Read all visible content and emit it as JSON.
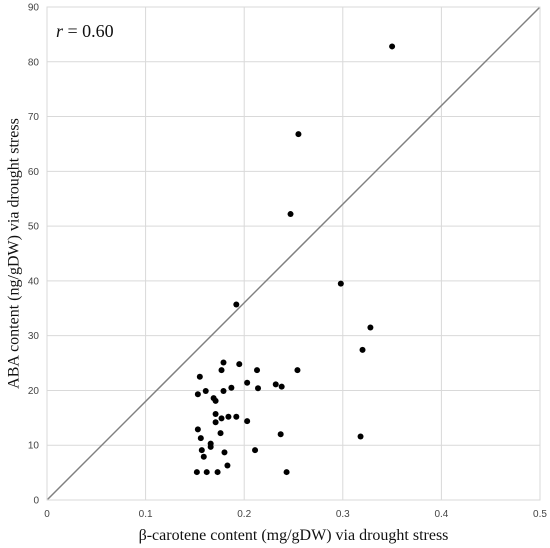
{
  "chart_data": {
    "type": "scatter",
    "title": "",
    "xlabel": "β-carotene content  (mg/gDW) via drought stress",
    "ylabel": "ABA content (ng/gDW) via drought stress",
    "xlim": [
      0,
      0.5
    ],
    "ylim": [
      0,
      90
    ],
    "xticks": [
      "0",
      "0.1",
      "0.2",
      "0.3",
      "0.4",
      "0.5"
    ],
    "yticks": [
      "0",
      "10",
      "20",
      "30",
      "40",
      "50",
      "60",
      "70",
      "80",
      "90"
    ],
    "grid": true,
    "annotation": {
      "r_label": "r",
      "r_value": " = 0.60"
    },
    "reference_line": {
      "from": [
        0,
        0
      ],
      "to": [
        0.5,
        90
      ]
    },
    "colors": {
      "points": "#000000",
      "line": "#808080",
      "grid": "#d9d9d9"
    },
    "points": [
      [
        0.35,
        82.8
      ],
      [
        0.255,
        66.8
      ],
      [
        0.247,
        52.2
      ],
      [
        0.298,
        39.5
      ],
      [
        0.192,
        35.7
      ],
      [
        0.328,
        31.5
      ],
      [
        0.32,
        27.4
      ],
      [
        0.179,
        25.1
      ],
      [
        0.195,
        24.8
      ],
      [
        0.213,
        23.7
      ],
      [
        0.254,
        23.7
      ],
      [
        0.177,
        23.7
      ],
      [
        0.155,
        22.5
      ],
      [
        0.203,
        21.4
      ],
      [
        0.232,
        21.1
      ],
      [
        0.238,
        20.7
      ],
      [
        0.214,
        20.4
      ],
      [
        0.187,
        20.5
      ],
      [
        0.161,
        19.9
      ],
      [
        0.179,
        19.9
      ],
      [
        0.153,
        19.3
      ],
      [
        0.169,
        18.6
      ],
      [
        0.171,
        18.1
      ],
      [
        0.171,
        15.7
      ],
      [
        0.184,
        15.2
      ],
      [
        0.192,
        15.2
      ],
      [
        0.177,
        14.9
      ],
      [
        0.203,
        14.4
      ],
      [
        0.171,
        14.2
      ],
      [
        0.153,
        12.9
      ],
      [
        0.176,
        12.2
      ],
      [
        0.237,
        12.0
      ],
      [
        0.318,
        11.6
      ],
      [
        0.156,
        11.3
      ],
      [
        0.166,
        10.3
      ],
      [
        0.166,
        9.7
      ],
      [
        0.157,
        9.1
      ],
      [
        0.211,
        9.1
      ],
      [
        0.18,
        8.7
      ],
      [
        0.159,
        7.9
      ],
      [
        0.183,
        6.3
      ],
      [
        0.152,
        5.1
      ],
      [
        0.162,
        5.1
      ],
      [
        0.173,
        5.1
      ],
      [
        0.243,
        5.1
      ]
    ]
  }
}
